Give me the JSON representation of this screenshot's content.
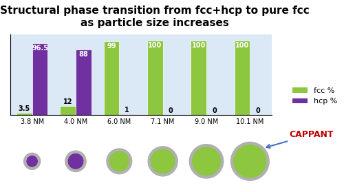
{
  "chart_data": {
    "type": "bar",
    "title": "Structural phase transition from fcc+hcp to pure fcc as particle size increases",
    "categories": [
      "3.8 NM",
      "4.0 NM",
      "6.0 NM",
      "7.1 NM",
      "9.0 NM",
      "10.1 NM"
    ],
    "series": [
      {
        "name": "fcc %",
        "color": "#8dc63f",
        "values": [
          3.5,
          12,
          99,
          100,
          100,
          100
        ]
      },
      {
        "name": "hcp %",
        "color": "#7030a0",
        "values": [
          96.5,
          88,
          1,
          0,
          0,
          0
        ]
      }
    ],
    "ylim": [
      0,
      108
    ],
    "tick_labels": "x",
    "data_labels": true,
    "legend": "center right",
    "annotations": [
      "CAPPANT"
    ]
  }
}
